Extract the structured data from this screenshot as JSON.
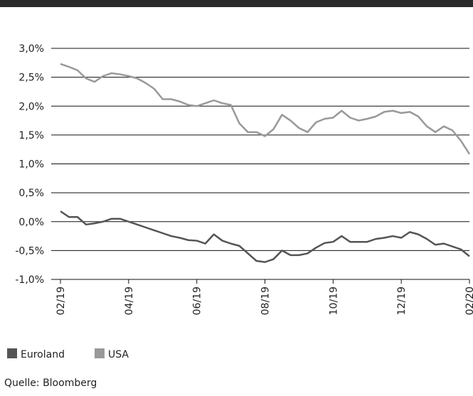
{
  "chart_data": {
    "type": "line",
    "x": [
      0,
      0.25,
      0.5,
      0.75,
      1,
      1.25,
      1.5,
      1.75,
      2,
      2.25,
      2.5,
      2.75,
      3,
      3.25,
      3.5,
      3.75,
      4,
      4.25,
      4.5,
      4.75,
      5,
      5.25,
      5.5,
      5.75,
      6,
      6.25,
      6.5,
      6.75,
      7,
      7.25,
      7.5,
      7.75,
      8,
      8.25,
      8.5,
      8.75,
      9,
      9.25,
      9.5,
      9.75,
      10,
      10.25,
      10.5,
      10.75,
      11,
      11.25,
      11.5,
      11.75,
      12
    ],
    "series": [
      {
        "name": "Euroland",
        "color": "#555555",
        "values": [
          0.18,
          0.08,
          0.08,
          -0.05,
          -0.03,
          0.0,
          0.05,
          0.05,
          0.0,
          -0.05,
          -0.1,
          -0.15,
          -0.2,
          -0.25,
          -0.28,
          -0.32,
          -0.33,
          -0.38,
          -0.22,
          -0.33,
          -0.38,
          -0.42,
          -0.55,
          -0.68,
          -0.7,
          -0.65,
          -0.5,
          -0.58,
          -0.58,
          -0.55,
          -0.45,
          -0.37,
          -0.35,
          -0.25,
          -0.35,
          -0.35,
          -0.35,
          -0.3,
          -0.28,
          -0.25,
          -0.28,
          -0.18,
          -0.22,
          -0.3,
          -0.4,
          -0.38,
          -0.43,
          -0.48,
          -0.6
        ]
      },
      {
        "name": "USA",
        "color": "#999999",
        "values": [
          2.73,
          2.68,
          2.62,
          2.48,
          2.42,
          2.52,
          2.57,
          2.55,
          2.52,
          2.48,
          2.4,
          2.3,
          2.12,
          2.12,
          2.08,
          2.02,
          2.0,
          2.05,
          2.1,
          2.05,
          2.02,
          1.7,
          1.55,
          1.55,
          1.48,
          1.6,
          1.85,
          1.75,
          1.62,
          1.55,
          1.72,
          1.78,
          1.8,
          1.92,
          1.8,
          1.75,
          1.78,
          1.82,
          1.9,
          1.92,
          1.88,
          1.9,
          1.82,
          1.65,
          1.55,
          1.65,
          1.58,
          1.4,
          1.17
        ]
      }
    ],
    "xlim": [
      0,
      12
    ],
    "xticks": [
      {
        "value": 0,
        "label": "02/19"
      },
      {
        "value": 2,
        "label": "04/19"
      },
      {
        "value": 4,
        "label": "06/19"
      },
      {
        "value": 6,
        "label": "08/19"
      },
      {
        "value": 8,
        "label": "10/19"
      },
      {
        "value": 10,
        "label": "12/19"
      },
      {
        "value": 12,
        "label": "02/20"
      }
    ],
    "ylim": [
      -1,
      3
    ],
    "yticks": [
      {
        "value": 3,
        "label": "3,0%"
      },
      {
        "value": 2.5,
        "label": "2,5%"
      },
      {
        "value": 2,
        "label": "2,0%"
      },
      {
        "value": 1.5,
        "label": "1,5%"
      },
      {
        "value": 1,
        "label": "1,0%"
      },
      {
        "value": 0.5,
        "label": "0,5%"
      },
      {
        "value": 0,
        "label": "0,0%"
      },
      {
        "value": -0.5,
        "label": "-0,5%"
      },
      {
        "value": -1,
        "label": "-1,0%"
      }
    ],
    "grid": true,
    "source": "Quelle: Bloomberg"
  }
}
